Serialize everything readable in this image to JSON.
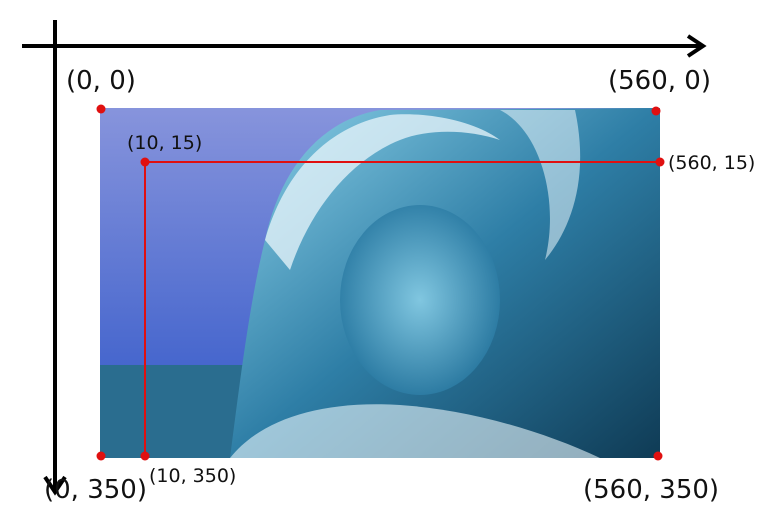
{
  "colors": {
    "axis": "#000000",
    "crop_outline": "#e01010",
    "corner_dot": "#e01010",
    "sky_top": "#8794dc",
    "sky_bottom": "#2f56c8",
    "wave_dark": "#0f3b55",
    "wave_mid": "#2e7ea6",
    "wave_light": "#8fd3ea",
    "foam": "#e9f6fb",
    "sea": "#2a6d8f"
  },
  "icons": {
    "x_axis_arrowhead": "arrow-right-icon",
    "y_axis_arrowhead": "arrow-down-icon",
    "corner_marker": "dot-icon"
  },
  "labels": {
    "outer_top_left": "(0, 0)",
    "outer_top_right": "(560, 0)",
    "outer_bottom_left": "(0, 350)",
    "outer_bottom_right": "(560, 350)",
    "inner_top_left": "(10, 15)",
    "inner_top_right": "(560, 15)",
    "inner_bottom_left": "(10, 350)"
  },
  "image": {
    "subject": "ocean wave photo"
  }
}
